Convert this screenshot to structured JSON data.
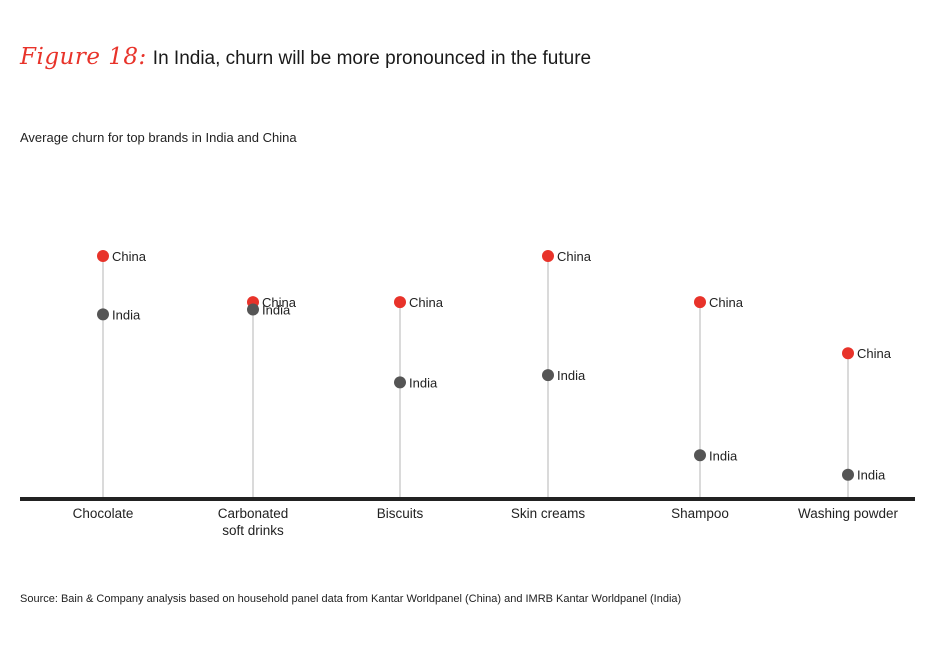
{
  "figure": {
    "label": "Figure 18:",
    "title": "In India, churn will be more pronounced in the future",
    "subtitle": "Average churn for top brands in India and China",
    "source": "Source: Bain & Company analysis based on household panel data from Kantar Worldpanel (China) and IMRB Kantar Worldpanel (India)"
  },
  "colors": {
    "china": "#e8332a",
    "india": "#555555",
    "axis": "#222222",
    "stem": "#b5b5b5"
  },
  "chart_data": {
    "type": "scatter",
    "categories": [
      "Chocolate",
      "Carbonated\nsoft drinks",
      "Biscuits",
      "Skin creams",
      "Shampoo",
      "Washing powder"
    ],
    "series": [
      {
        "name": "China",
        "values": [
          100,
          81,
          81,
          100,
          81,
          60
        ]
      },
      {
        "name": "India",
        "values": [
          76,
          78,
          48,
          51,
          18,
          10
        ]
      }
    ],
    "ylim": [
      0,
      100
    ],
    "grid": false,
    "legend": "none",
    "xlabel": "",
    "ylabel": ""
  }
}
